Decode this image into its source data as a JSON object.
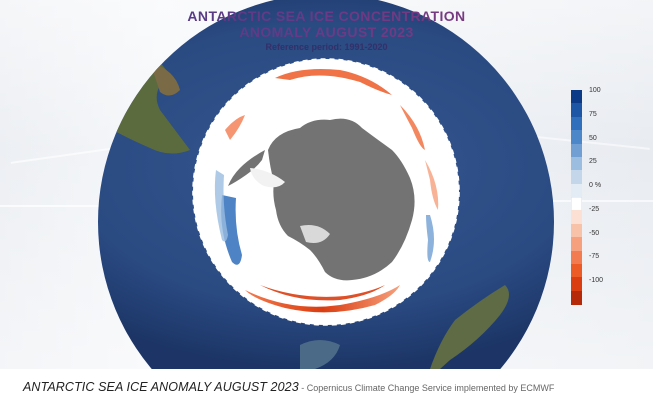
{
  "title": {
    "line1": "ANTARCTIC SEA ICE CONCENTRATION",
    "line2": "ANOMALY AUGUST 2023",
    "reference": "Reference period: 1991-2020"
  },
  "legend": {
    "unit_label": "0 %",
    "ticks": [
      "100",
      "75",
      "50",
      "25",
      "-25",
      "-50",
      "-75",
      "-100"
    ],
    "colors": [
      "#0d3a86",
      "#1c56a4",
      "#2f6fbb",
      "#4c88c9",
      "#719fd3",
      "#9bbde0",
      "#c3d6ea",
      "#e3ecf4",
      "#ffffff",
      "#fbe0d3",
      "#f8c2a8",
      "#f6a07d",
      "#f27b4f",
      "#ec5a26",
      "#da3d10",
      "#b52909"
    ]
  },
  "map_colors": {
    "ocean": "#2a4a82",
    "antarctica": "#737373",
    "positive_anomaly": "#2f6fbb",
    "negative_anomaly": "#e8531f"
  },
  "caption": {
    "main": "ANTARCTIC SEA ICE ANOMALY AUGUST 2023",
    "separator": " - ",
    "credit": "Copernicus Climate Change Service implemented by ECMWF"
  }
}
